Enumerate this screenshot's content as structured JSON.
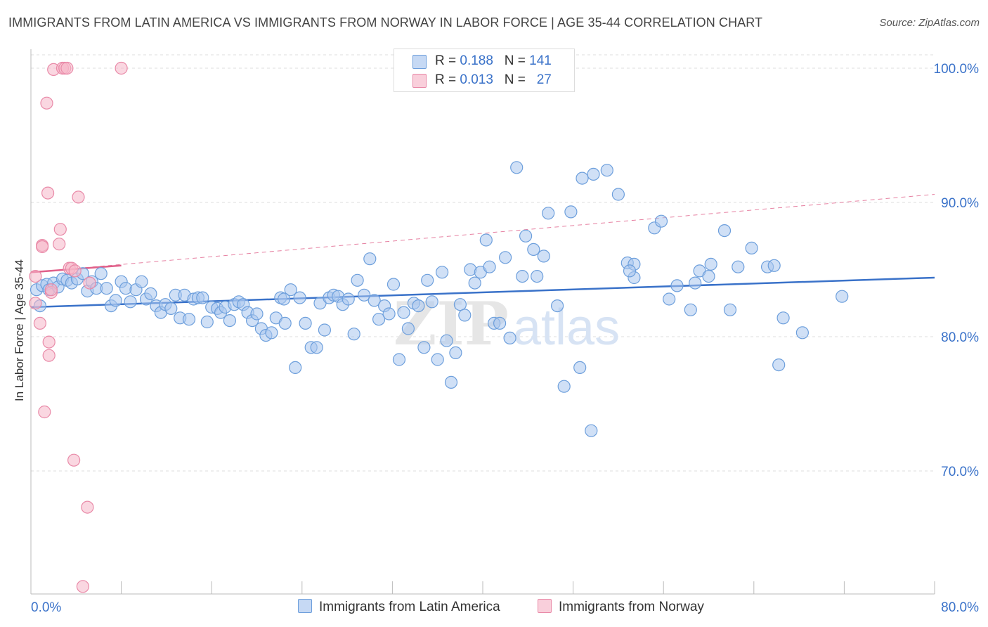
{
  "header": {
    "title": "IMMIGRANTS FROM LATIN AMERICA VS IMMIGRANTS FROM NORWAY IN LABOR FORCE | AGE 35-44 CORRELATION CHART",
    "source_prefix": "Source: ",
    "source_site": "ZipAtlas.com"
  },
  "watermark": {
    "zip": "ZIP",
    "atlas": "atlas"
  },
  "legend": {
    "rows": [
      {
        "r_label": "R = ",
        "r_value": "0.188",
        "n_label": "N = ",
        "n_value": "141",
        "color": "#a9c6ee"
      },
      {
        "r_label": "R = ",
        "r_value": "0.013",
        "n_label": "N = ",
        "n_value": "27",
        "color": "#f6b6c9"
      }
    ]
  },
  "bottom_legend": {
    "latin": "Immigrants from Latin America",
    "norway": "Immigrants from Norway"
  },
  "colors": {
    "blue_fill": "#a9c6ee",
    "blue_stroke": "#6d9fdc",
    "blue_line": "#3a72c9",
    "pink_fill": "#f6b6c9",
    "pink_stroke": "#e98aa8",
    "pink_line": "#e0608a",
    "axis_text": "#3a72c9",
    "grid": "#dddddd"
  },
  "chart_data": {
    "type": "scatter",
    "title": "IMMIGRANTS FROM LATIN AMERICA VS IMMIGRANTS FROM NORWAY IN LABOR FORCE | AGE 35-44 CORRELATION CHART",
    "xlabel": "",
    "ylabel": "In Labor Force | Age 35-44",
    "xlim": [
      0,
      80
    ],
    "ylim": [
      60.5,
      101.5
    ],
    "x_tick_labels": [
      "0.0%",
      "80.0%"
    ],
    "y_ticks": [
      70,
      80,
      90,
      100
    ],
    "y_tick_labels": [
      "70.0%",
      "80.0%",
      "90.0%",
      "100.0%"
    ],
    "grid": true,
    "legend_placement": "top-center",
    "series": [
      {
        "name": "Immigrants from Latin America",
        "R": 0.188,
        "N": 141,
        "trend": {
          "x": [
            0,
            80
          ],
          "y": [
            82.2,
            84.4
          ]
        },
        "points": [
          [
            0.5,
            83.5
          ],
          [
            0.8,
            82.3
          ],
          [
            1.0,
            83.8
          ],
          [
            1.4,
            83.9
          ],
          [
            1.6,
            83.5
          ],
          [
            2.0,
            84.0
          ],
          [
            2.4,
            83.7
          ],
          [
            2.8,
            84.3
          ],
          [
            3.2,
            84.2
          ],
          [
            3.6,
            84.0
          ],
          [
            4.1,
            84.3
          ],
          [
            4.6,
            84.7
          ],
          [
            5.0,
            83.4
          ],
          [
            5.4,
            84.1
          ],
          [
            5.8,
            83.6
          ],
          [
            6.2,
            84.7
          ],
          [
            6.7,
            83.6
          ],
          [
            7.1,
            82.3
          ],
          [
            7.5,
            82.7
          ],
          [
            8.0,
            84.1
          ],
          [
            8.4,
            83.6
          ],
          [
            8.8,
            82.6
          ],
          [
            9.3,
            83.5
          ],
          [
            9.8,
            84.1
          ],
          [
            10.2,
            82.8
          ],
          [
            10.6,
            83.2
          ],
          [
            11.1,
            82.3
          ],
          [
            11.5,
            81.8
          ],
          [
            11.9,
            82.4
          ],
          [
            12.4,
            82.1
          ],
          [
            12.8,
            83.1
          ],
          [
            13.2,
            81.4
          ],
          [
            13.6,
            83.1
          ],
          [
            14.0,
            81.3
          ],
          [
            14.4,
            82.8
          ],
          [
            14.8,
            82.9
          ],
          [
            15.2,
            82.9
          ],
          [
            15.6,
            81.1
          ],
          [
            16.0,
            82.2
          ],
          [
            16.5,
            82.1
          ],
          [
            16.8,
            81.8
          ],
          [
            17.2,
            82.2
          ],
          [
            17.6,
            81.2
          ],
          [
            18.0,
            82.4
          ],
          [
            18.4,
            82.6
          ],
          [
            18.8,
            82.4
          ],
          [
            19.2,
            81.8
          ],
          [
            19.6,
            81.2
          ],
          [
            20.0,
            81.7
          ],
          [
            20.4,
            80.6
          ],
          [
            20.8,
            80.1
          ],
          [
            21.3,
            80.3
          ],
          [
            21.7,
            81.4
          ],
          [
            22.1,
            82.9
          ],
          [
            22.5,
            81.0
          ],
          [
            23.0,
            83.5
          ],
          [
            23.4,
            77.7
          ],
          [
            23.8,
            82.9
          ],
          [
            24.3,
            81.0
          ],
          [
            24.8,
            79.2
          ],
          [
            25.3,
            79.2
          ],
          [
            25.6,
            82.5
          ],
          [
            26.0,
            80.5
          ],
          [
            26.4,
            82.9
          ],
          [
            26.8,
            83.1
          ],
          [
            27.2,
            83.0
          ],
          [
            27.6,
            82.4
          ],
          [
            28.1,
            82.8
          ],
          [
            28.6,
            80.2
          ],
          [
            28.9,
            84.2
          ],
          [
            29.5,
            83.1
          ],
          [
            30.0,
            85.8
          ],
          [
            30.4,
            82.7
          ],
          [
            30.8,
            81.3
          ],
          [
            31.3,
            82.3
          ],
          [
            31.7,
            81.7
          ],
          [
            32.1,
            83.9
          ],
          [
            32.6,
            78.3
          ],
          [
            33.0,
            81.8
          ],
          [
            33.4,
            80.6
          ],
          [
            33.9,
            82.5
          ],
          [
            34.3,
            82.3
          ],
          [
            34.8,
            79.2
          ],
          [
            35.1,
            84.2
          ],
          [
            35.5,
            82.6
          ],
          [
            36.0,
            78.3
          ],
          [
            36.4,
            84.8
          ],
          [
            36.8,
            79.7
          ],
          [
            37.2,
            76.6
          ],
          [
            37.6,
            78.8
          ],
          [
            38.0,
            82.4
          ],
          [
            38.4,
            81.6
          ],
          [
            38.9,
            85.0
          ],
          [
            39.3,
            84.0
          ],
          [
            39.8,
            84.8
          ],
          [
            40.3,
            87.2
          ],
          [
            40.6,
            85.2
          ],
          [
            41.0,
            81.0
          ],
          [
            41.5,
            81.0
          ],
          [
            42.0,
            85.9
          ],
          [
            42.4,
            79.9
          ],
          [
            43.0,
            92.6
          ],
          [
            43.5,
            84.5
          ],
          [
            43.8,
            87.5
          ],
          [
            44.5,
            86.5
          ],
          [
            44.8,
            84.5
          ],
          [
            45.4,
            86.0
          ],
          [
            45.8,
            89.2
          ],
          [
            46.6,
            82.3
          ],
          [
            47.2,
            76.3
          ],
          [
            47.8,
            89.3
          ],
          [
            48.6,
            77.7
          ],
          [
            48.8,
            91.8
          ],
          [
            49.6,
            73.0
          ],
          [
            49.8,
            92.1
          ],
          [
            51.0,
            92.4
          ],
          [
            52.0,
            90.6
          ],
          [
            52.8,
            85.5
          ],
          [
            53.4,
            84.4
          ],
          [
            53.4,
            85.4
          ],
          [
            55.2,
            88.1
          ],
          [
            55.8,
            88.6
          ],
          [
            56.5,
            82.8
          ],
          [
            57.2,
            83.8
          ],
          [
            58.4,
            82.0
          ],
          [
            58.8,
            84.0
          ],
          [
            59.2,
            84.9
          ],
          [
            60.0,
            84.5
          ],
          [
            60.2,
            85.4
          ],
          [
            61.4,
            87.9
          ],
          [
            61.9,
            82.0
          ],
          [
            62.6,
            85.2
          ],
          [
            63.8,
            86.6
          ],
          [
            65.2,
            85.2
          ],
          [
            65.8,
            85.3
          ],
          [
            66.2,
            77.9
          ],
          [
            66.6,
            81.4
          ],
          [
            68.3,
            80.3
          ],
          [
            71.8,
            83.0
          ],
          [
            53.0,
            84.9
          ],
          [
            22.4,
            82.8
          ]
        ]
      },
      {
        "name": "Immigrants from Norway",
        "R": 0.013,
        "N": 27,
        "trend": {
          "x": [
            0,
            8
          ],
          "y": [
            84.8,
            85.3
          ]
        },
        "trend_extended": {
          "x": [
            0,
            80
          ],
          "y": [
            84.8,
            90.6
          ]
        },
        "points": [
          [
            0.4,
            82.5
          ],
          [
            0.4,
            84.5
          ],
          [
            0.8,
            81.0
          ],
          [
            1.0,
            86.8
          ],
          [
            1.0,
            86.7
          ],
          [
            1.2,
            74.4
          ],
          [
            1.4,
            97.4
          ],
          [
            1.5,
            90.7
          ],
          [
            1.6,
            79.6
          ],
          [
            1.6,
            78.6
          ],
          [
            1.8,
            83.3
          ],
          [
            1.8,
            83.5
          ],
          [
            2.0,
            99.9
          ],
          [
            2.5,
            86.9
          ],
          [
            2.6,
            88.0
          ],
          [
            2.8,
            100.0
          ],
          [
            3.0,
            100.0
          ],
          [
            3.2,
            100.0
          ],
          [
            3.4,
            85.1
          ],
          [
            3.6,
            85.1
          ],
          [
            3.8,
            70.8
          ],
          [
            3.9,
            84.9
          ],
          [
            4.2,
            90.4
          ],
          [
            4.6,
            61.4
          ],
          [
            5.0,
            67.3
          ],
          [
            5.2,
            84.0
          ],
          [
            8.0,
            100.0
          ]
        ]
      }
    ]
  }
}
